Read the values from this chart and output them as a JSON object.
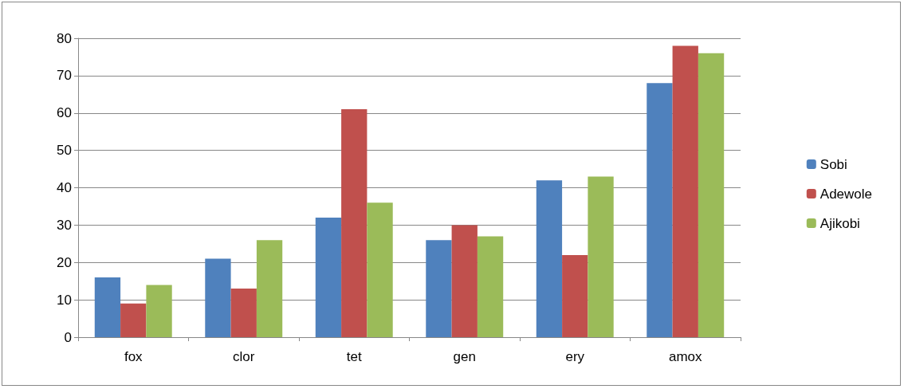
{
  "chart_data": {
    "type": "bar",
    "categories": [
      "fox",
      "clor",
      "tet",
      "gen",
      "ery",
      "amox"
    ],
    "series": [
      {
        "name": "Sobi",
        "color": "#4f81bd",
        "values": [
          16,
          21,
          32,
          26,
          42,
          68
        ]
      },
      {
        "name": "Adewole",
        "color": "#c0504d",
        "values": [
          9,
          13,
          61,
          30,
          22,
          78
        ]
      },
      {
        "name": "Ajikobi",
        "color": "#9bbb59",
        "values": [
          14,
          26,
          36,
          27,
          43,
          76
        ]
      }
    ],
    "ylim": [
      0,
      80
    ],
    "yticks": [
      0,
      10,
      20,
      30,
      40,
      50,
      60,
      70,
      80
    ],
    "grid": "y",
    "legend": "right"
  }
}
